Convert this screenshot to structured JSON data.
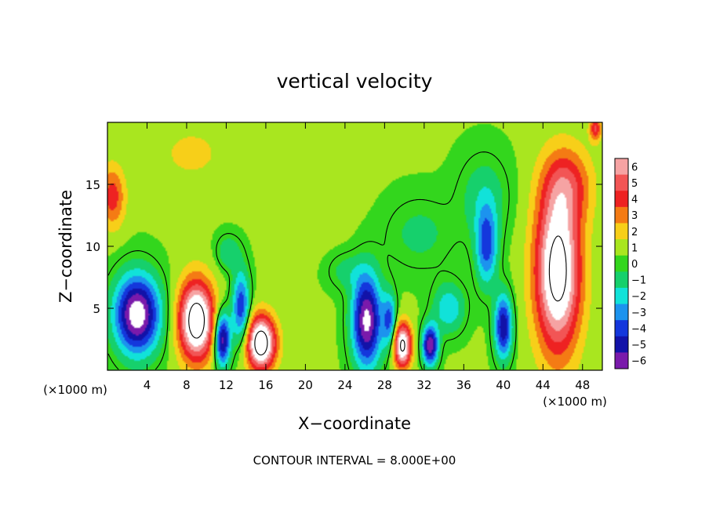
{
  "chart_data": {
    "type": "heatmap",
    "title": "vertical velocity",
    "xlabel": "X−coordinate",
    "ylabel": "Z−coordinate",
    "x_unit_left": "(×1000 m)",
    "x_unit_right": "(×1000 m)",
    "footer": "CONTOUR INTERVAL = 8.000E+00",
    "xlim": [
      0,
      50
    ],
    "ylim": [
      0,
      20
    ],
    "x_ticks": [
      4,
      8,
      12,
      16,
      20,
      24,
      28,
      32,
      36,
      40,
      44,
      48
    ],
    "x_tick_labels": [
      "4",
      "8",
      "12",
      "16",
      "20",
      "24",
      "28",
      "32",
      "36",
      "40",
      "44",
      "48"
    ],
    "y_ticks": [
      5,
      10,
      15
    ],
    "y_tick_labels": [
      "5",
      "10",
      "15"
    ],
    "colorbar": {
      "values": [
        6,
        5,
        4,
        3,
        2,
        1,
        0,
        -1,
        -2,
        -3,
        -4,
        -5,
        -6
      ],
      "labels": [
        "6",
        "5",
        "4",
        "3",
        "2",
        "1",
        "0",
        "−1",
        "−2",
        "−3",
        "−4",
        "−5",
        "−6"
      ],
      "colors": [
        "#f6a3a3",
        "#f25555",
        "#ee2222",
        "#f47b14",
        "#f7cf19",
        "#a9e61f",
        "#33d61d",
        "#16d06c",
        "#11e2d9",
        "#1c93ee",
        "#1437dc",
        "#1212a8",
        "#7a1aab"
      ]
    },
    "background_value": 0.6,
    "cells": [
      {
        "x": 3,
        "z": 4.5,
        "sx": 2.3,
        "sz": 3.2,
        "v": -8
      },
      {
        "x": 0.5,
        "z": 14,
        "sx": 1.3,
        "sz": 2.5,
        "v": 3.5
      },
      {
        "x": 9,
        "z": 4,
        "sx": 1.8,
        "sz": 3.2,
        "v": 9
      },
      {
        "x": 11.6,
        "z": 2.5,
        "sx": 0.8,
        "sz": 2.2,
        "v": -7
      },
      {
        "x": 12.2,
        "z": 9.5,
        "sx": 1.2,
        "sz": 1.4,
        "v": -2
      },
      {
        "x": 15.5,
        "z": 2.2,
        "sx": 1.5,
        "sz": 2.2,
        "v": 9
      },
      {
        "x": 13.5,
        "z": 5,
        "sx": 0.9,
        "sz": 3,
        "v": -5
      },
      {
        "x": 26.2,
        "z": 4,
        "sx": 1.5,
        "sz": 3.8,
        "v": -7.5
      },
      {
        "x": 29.8,
        "z": 2,
        "sx": 0.9,
        "sz": 1.8,
        "v": 8
      },
      {
        "x": 28.5,
        "z": 4,
        "sx": 0.7,
        "sz": 2.2,
        "v": -4
      },
      {
        "x": 32.6,
        "z": 2,
        "sx": 0.8,
        "sz": 1.6,
        "v": -7
      },
      {
        "x": 34.5,
        "z": 5,
        "sx": 1.6,
        "sz": 2,
        "v": -3
      },
      {
        "x": 38.3,
        "z": 10,
        "sx": 1.1,
        "sz": 3.2,
        "v": -4.5
      },
      {
        "x": 40,
        "z": 3.5,
        "sx": 0.9,
        "sz": 2.6,
        "v": -6
      },
      {
        "x": 45.5,
        "z": 8,
        "sx": 2.3,
        "sz": 6.5,
        "v": 8.5
      },
      {
        "x": 46.5,
        "z": 15,
        "sx": 2.5,
        "sz": 3,
        "v": 3
      },
      {
        "x": 49.3,
        "z": 19.5,
        "sx": 0.6,
        "sz": 1,
        "v": 4
      },
      {
        "x": 38,
        "z": 14,
        "sx": 2.6,
        "sz": 3.5,
        "v": -1.7
      },
      {
        "x": 31.5,
        "z": 11,
        "sx": 3.5,
        "sz": 3,
        "v": -1.4
      },
      {
        "x": 24,
        "z": 8,
        "sx": 1.8,
        "sz": 1.5,
        "v": -1.4
      },
      {
        "x": 8.5,
        "z": 17.5,
        "sx": 3,
        "sz": 2,
        "v": 1.4
      },
      {
        "x": 20,
        "z": 15,
        "sx": 4,
        "sz": 4,
        "v": 0.9
      }
    ]
  }
}
